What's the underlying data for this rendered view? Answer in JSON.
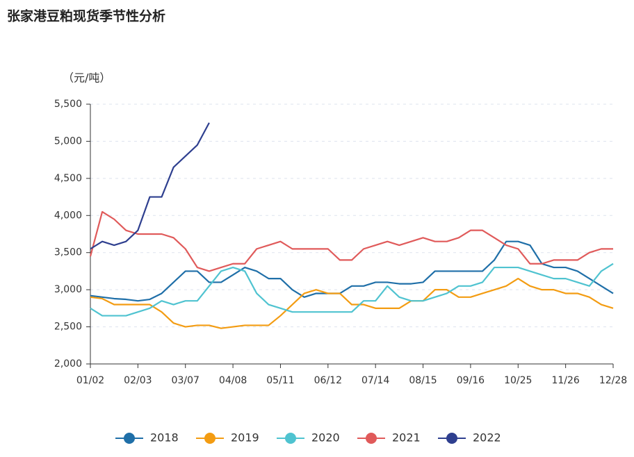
{
  "chart_data": {
    "type": "line",
    "title": "张家港豆粕现货季节性分析",
    "y_label": "（元/吨）",
    "x": [
      0,
      2.5,
      5,
      7.5,
      10,
      12.5,
      15,
      17.5,
      20,
      22.5,
      25,
      27.5,
      30,
      32.5,
      35,
      37.5,
      40,
      42.5,
      45,
      47.5,
      50,
      52.5,
      55,
      57.5,
      60,
      62.5,
      65,
      67.5,
      70,
      72.5,
      75,
      77.5,
      80,
      82.5,
      85,
      87.5,
      90,
      92.5,
      95,
      97.5,
      100,
      102.5,
      105,
      107.5,
      110
    ],
    "xlim": [
      0,
      110
    ],
    "xticks": [
      {
        "value": 0,
        "label": "01/02"
      },
      {
        "value": 10,
        "label": "02/03"
      },
      {
        "value": 20,
        "label": "03/07"
      },
      {
        "value": 30,
        "label": "04/08"
      },
      {
        "value": 40,
        "label": "05/11"
      },
      {
        "value": 50,
        "label": "06/12"
      },
      {
        "value": 60,
        "label": "07/14"
      },
      {
        "value": 70,
        "label": "08/15"
      },
      {
        "value": 80,
        "label": "09/16"
      },
      {
        "value": 90,
        "label": "10/25"
      },
      {
        "value": 100,
        "label": "11/26"
      },
      {
        "value": 110,
        "label": "12/28"
      }
    ],
    "ylim": [
      2000,
      5500
    ],
    "yticks": [
      {
        "value": 2000,
        "label": "2,000"
      },
      {
        "value": 2500,
        "label": "2,500"
      },
      {
        "value": 3000,
        "label": "3,000"
      },
      {
        "value": 3500,
        "label": "3,500"
      },
      {
        "value": 4000,
        "label": "4,000"
      },
      {
        "value": 4500,
        "label": "4,500"
      },
      {
        "value": 5000,
        "label": "5,000"
      },
      {
        "value": 5500,
        "label": "5,500"
      }
    ],
    "grid": true,
    "series": [
      {
        "name": "2018",
        "color": "#1f6fa8",
        "values": [
          2920,
          2900,
          2880,
          2870,
          2850,
          2870,
          2950,
          3100,
          3250,
          3250,
          3100,
          3100,
          3200,
          3300,
          3250,
          3150,
          3150,
          3000,
          2900,
          2950,
          2950,
          2950,
          3050,
          3050,
          3100,
          3100,
          3080,
          3080,
          3100,
          3250,
          3250,
          3250,
          3250,
          3250,
          3400,
          3650,
          3650,
          3600,
          3350,
          3300,
          3300,
          3250,
          3150,
          3050,
          2950
        ]
      },
      {
        "name": "2019",
        "color": "#f39c12",
        "values": [
          2900,
          2880,
          2800,
          2800,
          2800,
          2800,
          2700,
          2550,
          2500,
          2520,
          2520,
          2480,
          2500,
          2520,
          2520,
          2520,
          2650,
          2800,
          2950,
          3000,
          2950,
          2950,
          2800,
          2800,
          2750,
          2750,
          2750,
          2850,
          2850,
          3000,
          3000,
          2900,
          2900,
          2950,
          3000,
          3050,
          3150,
          3050,
          3000,
          3000,
          2950,
          2950,
          2900,
          2800,
          2750
        ]
      },
      {
        "name": "2020",
        "color": "#4fc3d0",
        "values": [
          2750,
          2650,
          2650,
          2650,
          2700,
          2750,
          2850,
          2800,
          2850,
          2850,
          3050,
          3250,
          3300,
          3250,
          2950,
          2800,
          2750,
          2700,
          2700,
          2700,
          2700,
          2700,
          2700,
          2850,
          2850,
          3050,
          2900,
          2850,
          2850,
          2900,
          2950,
          3050,
          3050,
          3100,
          3300,
          3300,
          3300,
          3250,
          3200,
          3150,
          3150,
          3100,
          3050,
          3250,
          3350
        ]
      },
      {
        "name": "2021",
        "color": "#e05a5a",
        "values": [
          3450,
          4050,
          3950,
          3800,
          3750,
          3750,
          3750,
          3700,
          3550,
          3300,
          3250,
          3300,
          3350,
          3350,
          3550,
          3600,
          3650,
          3550,
          3550,
          3550,
          3550,
          3400,
          3400,
          3550,
          3600,
          3650,
          3600,
          3650,
          3700,
          3650,
          3650,
          3700,
          3800,
          3800,
          3700,
          3600,
          3550,
          3350,
          3350,
          3400,
          3400,
          3400,
          3500,
          3550,
          3550
        ]
      },
      {
        "name": "2022",
        "color": "#2e3f8f",
        "values": [
          3550,
          3650,
          3600,
          3650,
          3800,
          4250,
          4250,
          4650,
          4800,
          4950,
          5250,
          null,
          null,
          null,
          null,
          null,
          null,
          null,
          null,
          null,
          null,
          null,
          null,
          null,
          null,
          null,
          null,
          null,
          null,
          null,
          null,
          null,
          null,
          null,
          null,
          null,
          null,
          null,
          null,
          null,
          null,
          null,
          null,
          null,
          null
        ]
      }
    ]
  }
}
